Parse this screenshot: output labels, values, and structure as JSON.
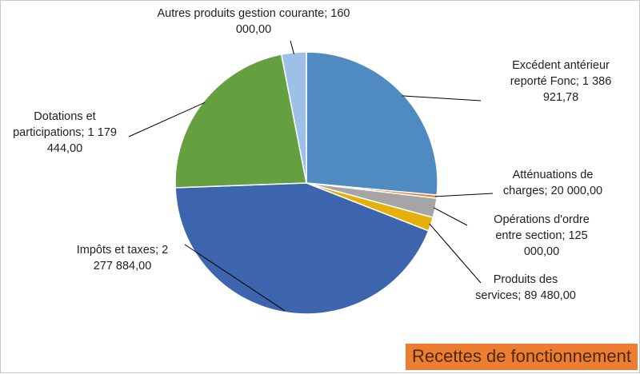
{
  "chart_data": {
    "type": "pie",
    "title": "Recettes de fonctionnement",
    "slices": [
      {
        "category": "Excédent antérieur reporté Fonc",
        "value": 1386921.78,
        "color": "#4f8ac0",
        "label_lines": [
          "Excédent antérieur",
          "reporté Fonc; 1 386",
          "921,78"
        ]
      },
      {
        "category": "Atténuations de charges",
        "value": 20000.0,
        "color": "#ed7d31",
        "label_lines": [
          "Atténuations de",
          "charges; 20 000,00"
        ]
      },
      {
        "category": "Opérations d'ordre entre section",
        "value": 125000.0,
        "color": "#a5a5a5",
        "label_lines": [
          "Opérations d'ordre",
          "entre section; 125",
          "000,00"
        ]
      },
      {
        "category": "Produits des services",
        "value": 89480.0,
        "color": "#e6b00c",
        "label_lines": [
          "Produits des",
          "services; 89 480,00"
        ]
      },
      {
        "category": "Impôts et taxes",
        "value": 2277884.0,
        "color": "#3d65ad",
        "label_lines": [
          "Impôts et taxes; 2",
          "277 884,00"
        ]
      },
      {
        "category": "Dotations et participations",
        "value": 1179444.0,
        "color": "#64a040",
        "label_lines": [
          "Dotations et",
          "participations; 1 179",
          "444,00"
        ]
      },
      {
        "category": "Autres produits gestion courante",
        "value": 160000.0,
        "color": "#9dc0e6",
        "label_lines": [
          "Autres produits gestion courante; 160",
          "000,00"
        ]
      }
    ]
  }
}
